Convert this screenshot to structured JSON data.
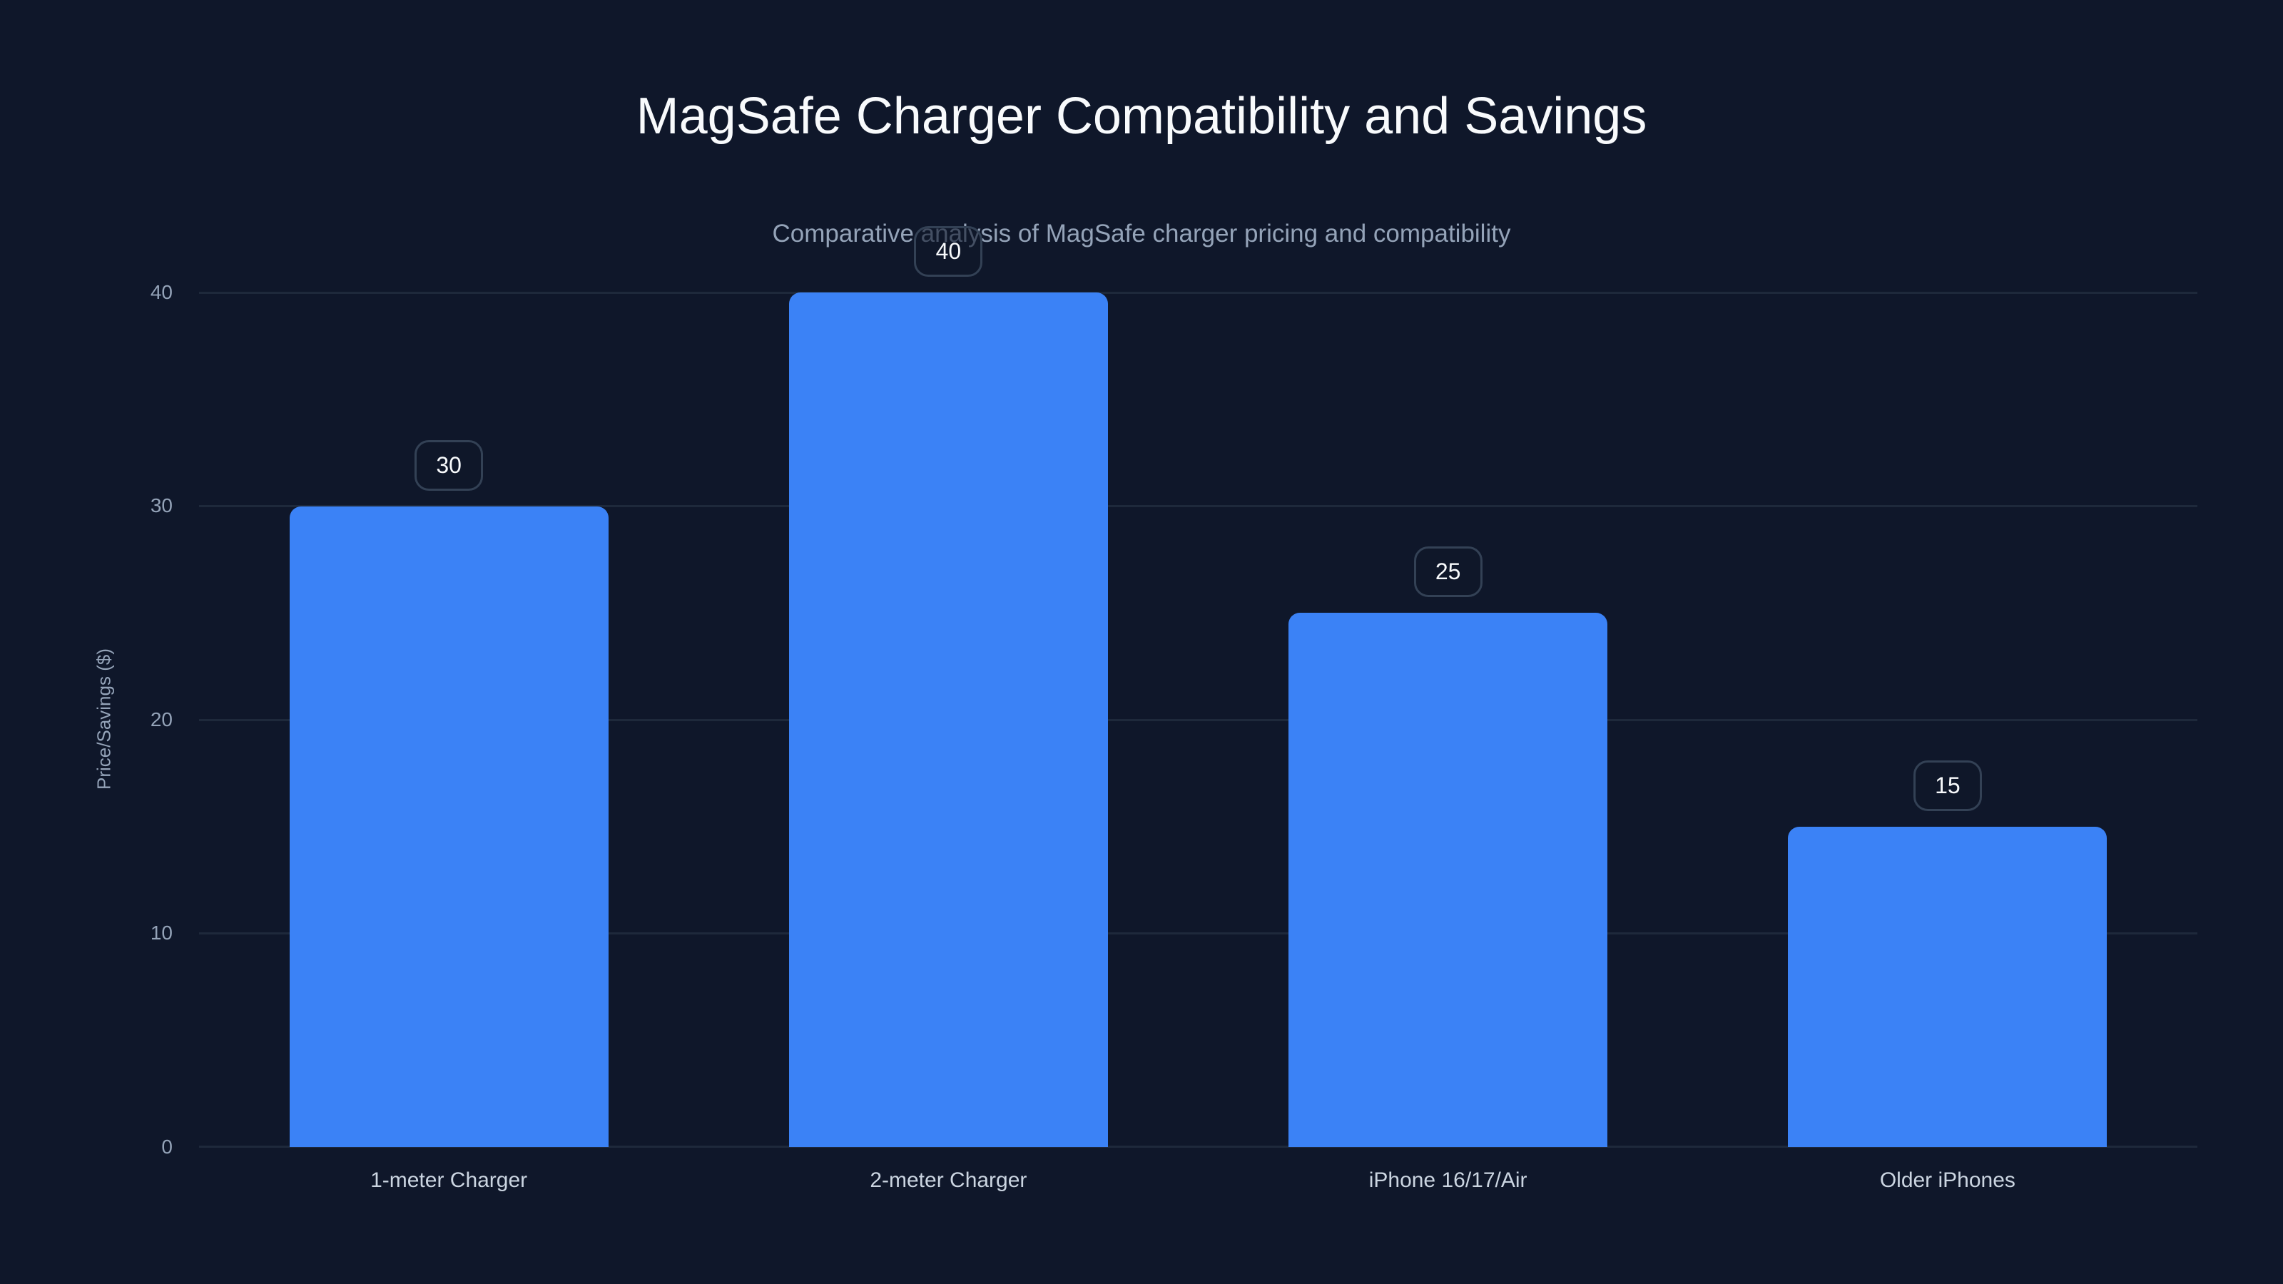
{
  "title": "MagSafe Charger Compatibility and Savings",
  "subtitle": "Comparative analysis of MagSafe charger pricing and compatibility",
  "colors": {
    "background": "#0f172a",
    "bar": "#3b82f6",
    "grid": "#1e293b",
    "label_border": "#334155"
  },
  "chart_data": {
    "type": "bar",
    "title": "MagSafe Charger Compatibility and Savings",
    "subtitle": "Comparative analysis of MagSafe charger pricing and compatibility",
    "xlabel": "",
    "ylabel": "Price/Savings ($)",
    "categories": [
      "1-meter Charger",
      "2-meter Charger",
      "iPhone 16/17/Air",
      "Older iPhones"
    ],
    "values": [
      30,
      40,
      25,
      15
    ],
    "data_labels": [
      "30",
      "40",
      "25",
      "15"
    ],
    "ylim": [
      0,
      40
    ],
    "yticks": [
      "0",
      "10",
      "20",
      "30",
      "40"
    ],
    "grid": true,
    "legend": null
  }
}
